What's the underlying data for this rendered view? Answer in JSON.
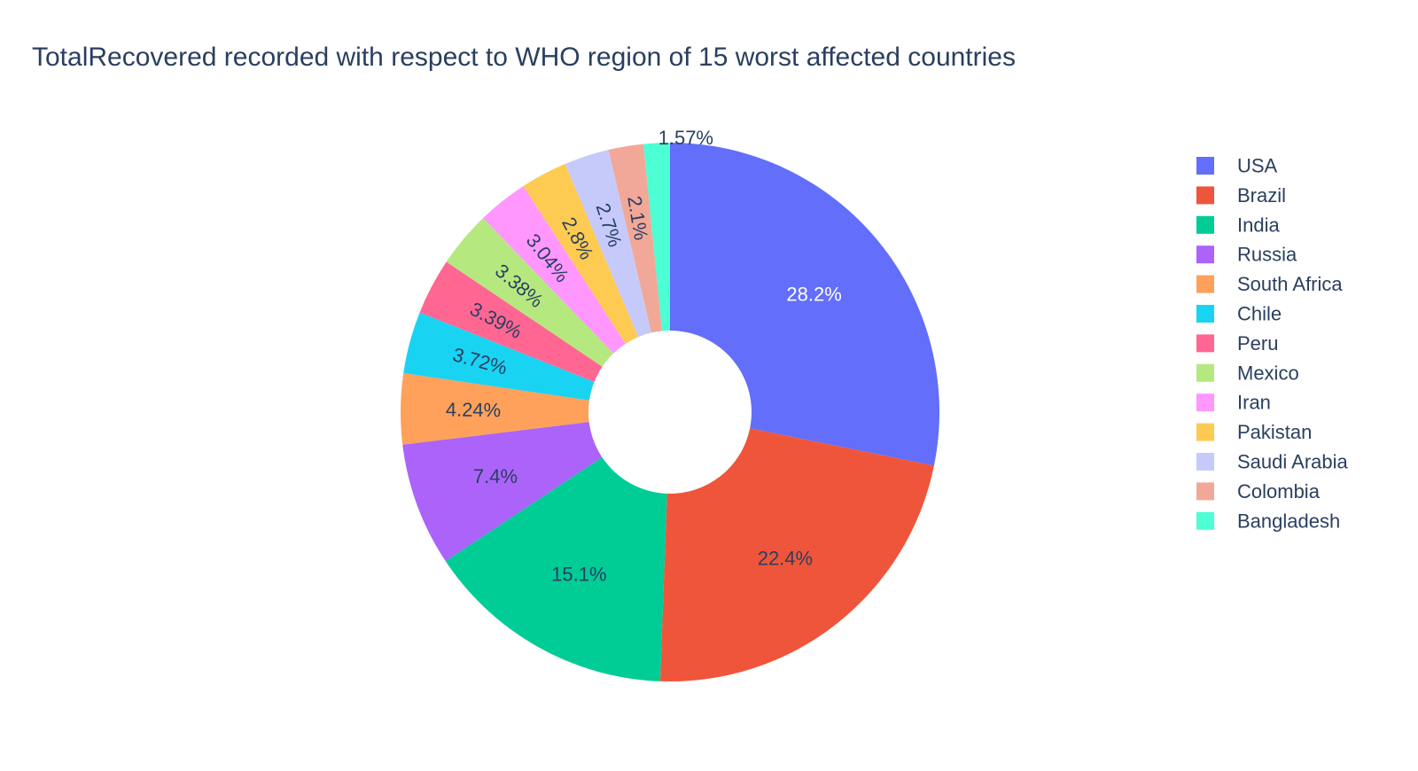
{
  "chart_data": {
    "type": "pie",
    "title": "TotalRecovered recorded with respect to WHO region of 15 worst affected countries",
    "hole": true,
    "legend_position": "right",
    "text_color_on_dark": "#ffffff",
    "text_color_default": "#2a3f5f",
    "slices": [
      {
        "label": "USA",
        "value": 28.2,
        "text": "28.2%",
        "color": "#636efa"
      },
      {
        "label": "Brazil",
        "value": 22.4,
        "text": "22.4%",
        "color": "#EF553B"
      },
      {
        "label": "India",
        "value": 15.1,
        "text": "15.1%",
        "color": "#00cc96"
      },
      {
        "label": "Russia",
        "value": 7.4,
        "text": "7.4%",
        "color": "#ab63fa"
      },
      {
        "label": "South Africa",
        "value": 4.24,
        "text": "4.24%",
        "color": "#FFA15A"
      },
      {
        "label": "Chile",
        "value": 3.72,
        "text": "3.72%",
        "color": "#19d3f3"
      },
      {
        "label": "Peru",
        "value": 3.39,
        "text": "3.39%",
        "color": "#FF6692"
      },
      {
        "label": "Mexico",
        "value": 3.38,
        "text": "3.38%",
        "color": "#B6E880"
      },
      {
        "label": "Iran",
        "value": 3.04,
        "text": "3.04%",
        "color": "#FF97FF"
      },
      {
        "label": "Pakistan",
        "value": 2.8,
        "text": "2.8%",
        "color": "#FECB52"
      },
      {
        "label": "Saudi Arabia",
        "value": 2.7,
        "text": "2.7%",
        "color": "#C6CAFA"
      },
      {
        "label": "Colombia",
        "value": 2.1,
        "text": "2.1%",
        "color": "#F2A898"
      },
      {
        "label": "Bangladesh",
        "value": 1.57,
        "text": "1.57%",
        "color": "#4CFFD4"
      }
    ]
  }
}
